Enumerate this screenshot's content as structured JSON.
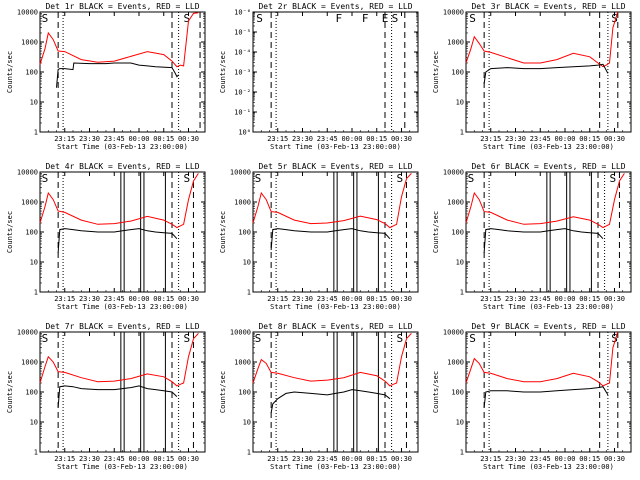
{
  "chart_data": [
    {
      "type": "line",
      "title": "Det 1r BLACK = Events, RED = LLD",
      "xlabel": "Start Time (03-Feb-13 23:00:00)",
      "ylabel": "Counts/sec",
      "scale": "log",
      "ylim": [
        1,
        10000
      ],
      "yticklabels": [
        "1",
        "10",
        "100",
        "1000",
        "10000"
      ],
      "xticks": [
        15,
        30,
        45,
        60,
        75,
        90
      ],
      "xticklabels": [
        "23:15",
        "23:30",
        "23:45",
        "00:00",
        "00:15",
        "00:30"
      ],
      "xlim": [
        0,
        100
      ],
      "annotations": [
        {
          "text": "S",
          "x": 1
        },
        {
          "text": "S",
          "x": 87
        }
      ],
      "dashed_lines": [
        11,
        80,
        97
      ],
      "dotted_lines": [
        14,
        84
      ],
      "solid_lines": [],
      "series": [
        {
          "color": "#ff0000",
          "x": [
            0,
            3,
            5,
            8,
            11,
            15,
            25,
            35,
            45,
            55,
            65,
            75,
            80,
            83,
            85,
            87,
            90,
            93,
            96
          ],
          "y": [
            180,
            600,
            2000,
            1200,
            500,
            480,
            260,
            210,
            230,
            330,
            480,
            380,
            230,
            150,
            170,
            160,
            5000,
            9000,
            9500
          ]
        },
        {
          "color": "#000000",
          "x": [
            10,
            11,
            12,
            15,
            20,
            20.5,
            30,
            40,
            45,
            55,
            60,
            65,
            70,
            80,
            82,
            83,
            84
          ],
          "y": [
            30,
            120,
            130,
            130,
            120,
            200,
            190,
            190,
            200,
            200,
            170,
            160,
            150,
            140,
            90,
            70,
            80
          ]
        }
      ]
    },
    {
      "type": "line",
      "title": "Det 2r BLACK = Events, RED = LLD",
      "xlabel": "Start Time (03-Feb-13 23:00:00)",
      "ylabel": "Counts/sec",
      "scale": "log",
      "ylim": [
        1,
        1e-06
      ],
      "yticklabels": [
        "10⁰",
        "10⁻¹",
        "10⁻²",
        "10⁻³",
        "10⁻⁴",
        "10⁻⁵",
        "10⁻⁶"
      ],
      "xticks": [
        15,
        30,
        45,
        60,
        75,
        90
      ],
      "xticklabels": [
        "23:15",
        "23:30",
        "23:45",
        "00:00",
        "00:15",
        "00:30"
      ],
      "xlim": [
        0,
        100
      ],
      "annotations": [
        {
          "text": "S",
          "x": 2
        },
        {
          "text": "F",
          "x": 50
        },
        {
          "text": "F",
          "x": 66
        },
        {
          "text": "E",
          "x": 78
        },
        {
          "text": "S",
          "x": 84
        }
      ],
      "dashed_lines": [
        11,
        80,
        92
      ],
      "dotted_lines": [
        14,
        84
      ],
      "solid_lines": [],
      "series": []
    },
    {
      "type": "line",
      "title": "Det 3r BLACK = Events, RED = LLD",
      "xlabel": "Start Time (03-Feb-13 23:00:00)",
      "ylabel": "Counts/sec",
      "scale": "log",
      "ylim": [
        1,
        10000
      ],
      "yticklabels": [
        "1",
        "10",
        "100",
        "1000",
        "10000"
      ],
      "xticks": [
        15,
        30,
        45,
        60,
        75,
        90
      ],
      "xticklabels": [
        "23:15",
        "23:30",
        "23:45",
        "00:00",
        "00:15",
        "00:30"
      ],
      "xlim": [
        0,
        100
      ],
      "annotations": [
        {
          "text": "S",
          "x": 2
        },
        {
          "text": "S",
          "x": 88
        }
      ],
      "dashed_lines": [
        11,
        81,
        92
      ],
      "dotted_lines": [
        14,
        86
      ],
      "solid_lines": [],
      "series": [
        {
          "color": "#ff0000",
          "x": [
            0,
            3,
            5,
            8,
            11,
            15,
            25,
            35,
            45,
            55,
            65,
            75,
            80,
            83,
            85,
            87,
            89,
            92
          ],
          "y": [
            200,
            600,
            1500,
            900,
            500,
            450,
            300,
            200,
            200,
            260,
            420,
            320,
            200,
            150,
            170,
            200,
            3000,
            10000
          ]
        },
        {
          "color": "#000000",
          "x": [
            11,
            12,
            15,
            25,
            35,
            45,
            55,
            65,
            75,
            80,
            83,
            86
          ],
          "y": [
            40,
            100,
            130,
            140,
            130,
            130,
            140,
            150,
            160,
            170,
            180,
            90
          ]
        }
      ]
    },
    {
      "type": "line",
      "title": "Det 4r BLACK = Events, RED = LLD",
      "xlabel": "Start Time (03-Feb-13 23:00:00)",
      "ylabel": "Counts/sec",
      "scale": "log",
      "ylim": [
        1,
        10000
      ],
      "yticklabels": [
        "1",
        "10",
        "100",
        "1000",
        "10000"
      ],
      "xticks": [
        15,
        30,
        45,
        60,
        75,
        90
      ],
      "xticklabels": [
        "23:15",
        "23:30",
        "23:45",
        "00:00",
        "00:15",
        "00:30"
      ],
      "xlim": [
        0,
        100
      ],
      "annotations": [
        {
          "text": "S",
          "x": 1
        },
        {
          "text": "S",
          "x": 87
        }
      ],
      "dashed_lines": [
        11,
        80,
        93
      ],
      "dotted_lines": [
        14,
        84
      ],
      "solid_lines": [
        49,
        51,
        61,
        63,
        76
      ],
      "series": [
        {
          "color": "#ff0000",
          "x": [
            0,
            3,
            5,
            8,
            11,
            15,
            25,
            35,
            45,
            55,
            65,
            75,
            80,
            83,
            85,
            87,
            90,
            93,
            96
          ],
          "y": [
            200,
            700,
            2000,
            1200,
            500,
            450,
            250,
            180,
            190,
            230,
            330,
            250,
            180,
            140,
            160,
            180,
            1200,
            5000,
            9000
          ]
        },
        {
          "color": "#000000",
          "x": [
            11,
            12,
            15,
            20,
            25,
            35,
            45,
            50,
            55,
            60,
            65,
            70,
            75,
            80,
            83
          ],
          "y": [
            20,
            120,
            130,
            120,
            110,
            100,
            100,
            110,
            120,
            130,
            110,
            100,
            95,
            90,
            60
          ]
        }
      ]
    },
    {
      "type": "line",
      "title": "Det 5r BLACK = Events, RED = LLD",
      "xlabel": "Start Time (03-Feb-13 23:00:00)",
      "ylabel": "Counts/sec",
      "scale": "log",
      "ylim": [
        1,
        10000
      ],
      "yticklabels": [
        "1",
        "10",
        "100",
        "1000",
        "10000"
      ],
      "xticks": [
        15,
        30,
        45,
        60,
        75,
        90
      ],
      "xticklabels": [
        "23:15",
        "23:30",
        "23:45",
        "00:00",
        "00:15",
        "00:30"
      ],
      "xlim": [
        0,
        100
      ],
      "annotations": [
        {
          "text": "S",
          "x": 1
        },
        {
          "text": "S",
          "x": 87
        }
      ],
      "dashed_lines": [
        11,
        80,
        93
      ],
      "dotted_lines": [
        14,
        84
      ],
      "solid_lines": [
        49,
        51,
        61,
        63,
        76
      ],
      "series": [
        {
          "color": "#ff0000",
          "x": [
            0,
            3,
            5,
            8,
            11,
            15,
            25,
            35,
            45,
            55,
            65,
            75,
            80,
            83,
            85,
            87,
            90,
            93,
            96
          ],
          "y": [
            200,
            700,
            2000,
            1200,
            480,
            450,
            250,
            190,
            200,
            240,
            340,
            260,
            190,
            140,
            160,
            180,
            1500,
            6000,
            9000
          ]
        },
        {
          "color": "#000000",
          "x": [
            11,
            12,
            15,
            20,
            25,
            35,
            45,
            50,
            55,
            60,
            65,
            70,
            75,
            80,
            83
          ],
          "y": [
            25,
            120,
            130,
            120,
            110,
            100,
            100,
            110,
            120,
            130,
            110,
            100,
            95,
            90,
            60
          ]
        }
      ]
    },
    {
      "type": "line",
      "title": "Det 6r BLACK = Events, RED = LLD",
      "xlabel": "Start Time (03-Feb-13 23:00:00)",
      "ylabel": "Counts/sec",
      "scale": "log",
      "ylim": [
        1,
        10000
      ],
      "yticklabels": [
        "1",
        "10",
        "100",
        "1000",
        "10000"
      ],
      "xticks": [
        15,
        30,
        45,
        60,
        75,
        90
      ],
      "xticklabels": [
        "23:15",
        "23:30",
        "23:45",
        "00:00",
        "00:15",
        "00:30"
      ],
      "xlim": [
        0,
        100
      ],
      "annotations": [
        {
          "text": "S",
          "x": 1
        },
        {
          "text": "S",
          "x": 87
        }
      ],
      "dashed_lines": [
        11,
        80,
        93
      ],
      "dotted_lines": [
        14,
        84
      ],
      "solid_lines": [
        49,
        51,
        61,
        63,
        76
      ],
      "series": [
        {
          "color": "#ff0000",
          "x": [
            0,
            3,
            5,
            8,
            11,
            15,
            25,
            35,
            45,
            55,
            65,
            75,
            80,
            83,
            85,
            87,
            90,
            93,
            96
          ],
          "y": [
            200,
            700,
            2000,
            1200,
            480,
            450,
            250,
            180,
            190,
            230,
            320,
            250,
            180,
            140,
            160,
            180,
            1200,
            5000,
            9000
          ]
        },
        {
          "color": "#000000",
          "x": [
            11,
            12,
            15,
            20,
            25,
            35,
            45,
            50,
            55,
            60,
            65,
            70,
            75,
            80,
            83
          ],
          "y": [
            20,
            120,
            130,
            120,
            110,
            100,
            100,
            110,
            120,
            130,
            110,
            100,
            95,
            90,
            60
          ]
        }
      ]
    },
    {
      "type": "line",
      "title": "Det 7r BLACK = Events, RED = LLD",
      "xlabel": "Start Time (03-Feb-13 23:00:00)",
      "ylabel": "Counts/sec",
      "scale": "log",
      "ylim": [
        1,
        10000
      ],
      "yticklabels": [
        "1",
        "10",
        "100",
        "1000",
        "10000"
      ],
      "xticks": [
        15,
        30,
        45,
        60,
        75,
        90
      ],
      "xticklabels": [
        "23:15",
        "23:30",
        "23:45",
        "00:00",
        "00:15",
        "00:30"
      ],
      "xlim": [
        0,
        100
      ],
      "annotations": [
        {
          "text": "S",
          "x": 1
        },
        {
          "text": "S",
          "x": 87
        }
      ],
      "dashed_lines": [
        11,
        80,
        93
      ],
      "dotted_lines": [
        14,
        84
      ],
      "solid_lines": [
        49,
        51,
        61,
        63,
        76
      ],
      "series": [
        {
          "color": "#ff0000",
          "x": [
            0,
            3,
            5,
            8,
            11,
            15,
            25,
            35,
            45,
            55,
            65,
            75,
            80,
            83,
            85,
            87,
            90,
            93,
            96
          ],
          "y": [
            200,
            700,
            1500,
            1000,
            480,
            450,
            300,
            220,
            230,
            280,
            400,
            320,
            220,
            160,
            180,
            200,
            1500,
            6000,
            9000
          ]
        },
        {
          "color": "#000000",
          "x": [
            11,
            12,
            15,
            20,
            25,
            35,
            45,
            50,
            55,
            60,
            65,
            70,
            75,
            80,
            83
          ],
          "y": [
            30,
            150,
            160,
            150,
            130,
            120,
            120,
            130,
            140,
            160,
            130,
            120,
            110,
            100,
            70
          ]
        }
      ]
    },
    {
      "type": "line",
      "title": "Det 8r BLACK = Events, RED = LLD",
      "xlabel": "Start Time (03-Feb-13 23:00:00)",
      "ylabel": "Counts/sec",
      "scale": "log",
      "ylim": [
        1,
        10000
      ],
      "yticklabels": [
        "1",
        "10",
        "100",
        "1000",
        "10000"
      ],
      "xticks": [
        15,
        30,
        45,
        60,
        75,
        90
      ],
      "xticklabels": [
        "23:15",
        "23:30",
        "23:45",
        "00:00",
        "00:15",
        "00:30"
      ],
      "xlim": [
        0,
        100
      ],
      "annotations": [
        {
          "text": "S",
          "x": 1
        },
        {
          "text": "S",
          "x": 87
        }
      ],
      "dashed_lines": [
        11,
        80,
        93
      ],
      "dotted_lines": [
        14,
        84
      ],
      "solid_lines": [
        49,
        51,
        61,
        63,
        76
      ],
      "series": [
        {
          "color": "#ff0000",
          "x": [
            0,
            3,
            5,
            8,
            11,
            15,
            25,
            35,
            45,
            55,
            65,
            75,
            80,
            83,
            85,
            87,
            90,
            93,
            96
          ],
          "y": [
            200,
            600,
            1200,
            900,
            450,
            420,
            300,
            230,
            250,
            300,
            450,
            350,
            230,
            160,
            180,
            200,
            1500,
            6000,
            9000
          ]
        },
        {
          "color": "#000000",
          "x": [
            11,
            12,
            15,
            20,
            25,
            35,
            45,
            50,
            55,
            60,
            65,
            70,
            75,
            80,
            83
          ],
          "y": [
            20,
            40,
            60,
            90,
            100,
            90,
            80,
            90,
            100,
            120,
            110,
            100,
            90,
            80,
            60
          ]
        }
      ]
    },
    {
      "type": "line",
      "title": "Det 9r BLACK = Events, RED = LLD",
      "xlabel": "Start Time (03-Feb-13 23:00:00)",
      "ylabel": "Counts/sec",
      "scale": "log",
      "ylim": [
        1,
        10000
      ],
      "yticklabels": [
        "1",
        "10",
        "100",
        "1000",
        "10000"
      ],
      "xticks": [
        15,
        30,
        45,
        60,
        75,
        90
      ],
      "xticklabels": [
        "23:15",
        "23:30",
        "23:45",
        "00:00",
        "00:15",
        "00:30"
      ],
      "xlim": [
        0,
        100
      ],
      "annotations": [
        {
          "text": "S",
          "x": 2
        },
        {
          "text": "S",
          "x": 88
        }
      ],
      "dashed_lines": [
        11,
        81,
        92
      ],
      "dotted_lines": [
        14,
        86
      ],
      "solid_lines": [],
      "series": [
        {
          "color": "#ff0000",
          "x": [
            0,
            3,
            5,
            8,
            11,
            15,
            25,
            35,
            45,
            55,
            65,
            75,
            80,
            83,
            85,
            87,
            89,
            92
          ],
          "y": [
            200,
            600,
            1300,
            900,
            450,
            420,
            280,
            220,
            220,
            280,
            420,
            320,
            220,
            160,
            180,
            200,
            3000,
            10000
          ]
        },
        {
          "color": "#000000",
          "x": [
            11,
            12,
            15,
            25,
            35,
            45,
            55,
            65,
            75,
            80,
            83,
            86
          ],
          "y": [
            30,
            100,
            110,
            110,
            100,
            100,
            110,
            120,
            130,
            140,
            150,
            80
          ]
        }
      ]
    }
  ]
}
